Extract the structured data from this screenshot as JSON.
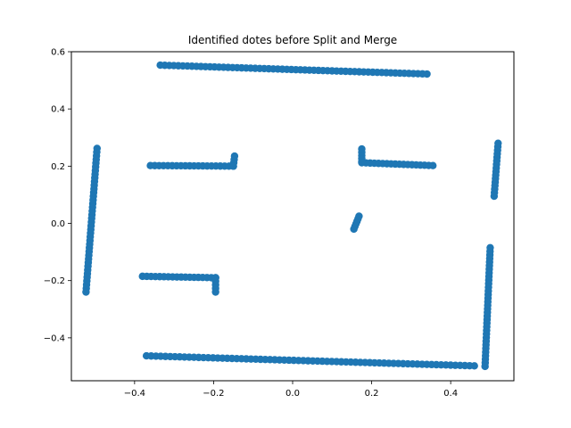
{
  "chart_data": {
    "type": "scatter",
    "title": "Identified dotes before Split and Merge",
    "xlabel": "",
    "ylabel": "",
    "xlim": [
      -0.56,
      0.56
    ],
    "ylim": [
      -0.55,
      0.6
    ],
    "xticks": [
      -0.4,
      -0.2,
      0.0,
      0.2,
      0.4
    ],
    "xtick_labels": [
      "−0.4",
      "−0.2",
      "0.0",
      "0.2",
      "0.4"
    ],
    "yticks": [
      -0.4,
      -0.2,
      0.0,
      0.2,
      0.4,
      0.6
    ],
    "ytick_labels": [
      "−0.4",
      "−0.2",
      "0.0",
      "0.2",
      "0.4",
      "0.6"
    ],
    "grid": false,
    "marker_color": "#1f77b4",
    "segments": [
      {
        "from": [
          -0.335,
          0.553
        ],
        "to": [
          0.34,
          0.522
        ],
        "n": 60
      },
      {
        "from": [
          -0.37,
          -0.463
        ],
        "to": [
          0.46,
          -0.498
        ],
        "n": 70
      },
      {
        "from": [
          -0.523,
          -0.24
        ],
        "to": [
          -0.495,
          0.262
        ],
        "n": 40
      },
      {
        "from": [
          0.487,
          -0.5
        ],
        "to": [
          0.5,
          -0.085
        ],
        "n": 34
      },
      {
        "from": [
          0.51,
          0.095
        ],
        "to": [
          0.52,
          0.28
        ],
        "n": 16
      },
      {
        "from": [
          -0.36,
          0.202
        ],
        "to": [
          -0.15,
          0.2
        ],
        "n": 20
      },
      {
        "from": [
          -0.15,
          0.2
        ],
        "to": [
          -0.147,
          0.235
        ],
        "n": 4
      },
      {
        "from": [
          -0.38,
          -0.185
        ],
        "to": [
          -0.195,
          -0.19
        ],
        "n": 18
      },
      {
        "from": [
          -0.195,
          -0.19
        ],
        "to": [
          -0.195,
          -0.24
        ],
        "n": 5
      },
      {
        "from": [
          0.175,
          0.212
        ],
        "to": [
          0.355,
          0.202
        ],
        "n": 18
      },
      {
        "from": [
          0.175,
          0.215
        ],
        "to": [
          0.175,
          0.26
        ],
        "n": 5
      },
      {
        "from": [
          0.155,
          -0.02
        ],
        "to": [
          0.168,
          0.025
        ],
        "n": 6
      }
    ]
  }
}
